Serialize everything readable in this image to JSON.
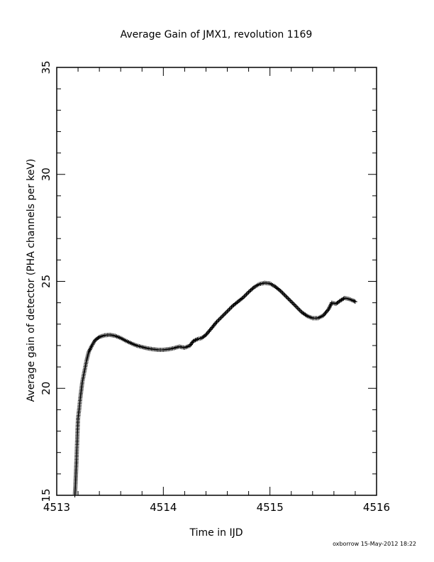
{
  "chart_data": {
    "type": "scatter",
    "title": "Average Gain of JMX1, revolution 1169",
    "xlabel": "Time in IJD",
    "ylabel": "Average gain of detector (PHA channels per keV)",
    "xlim": [
      4513,
      4516
    ],
    "ylim": [
      15,
      35
    ],
    "x_ticks": [
      "4513",
      "4514",
      "4515",
      "4516"
    ],
    "y_ticks": [
      "15",
      "20",
      "25",
      "30",
      "35"
    ],
    "grid": false,
    "marker": "+",
    "series": [
      {
        "points": [
          [
            4513.17,
            15.0
          ],
          [
            4513.175,
            15.4
          ],
          [
            4513.18,
            16.0
          ],
          [
            4513.185,
            16.6
          ],
          [
            4513.19,
            17.3
          ],
          [
            4513.195,
            18.0
          ],
          [
            4513.2,
            18.6
          ],
          [
            4513.21,
            19.0
          ],
          [
            4513.22,
            19.5
          ],
          [
            4513.23,
            19.9
          ],
          [
            4513.24,
            20.3
          ],
          [
            4513.26,
            20.8
          ],
          [
            4513.28,
            21.3
          ],
          [
            4513.3,
            21.7
          ],
          [
            4513.33,
            22.0
          ],
          [
            4513.36,
            22.25
          ],
          [
            4513.4,
            22.4
          ],
          [
            4513.45,
            22.48
          ],
          [
            4513.5,
            22.5
          ],
          [
            4513.55,
            22.45
          ],
          [
            4513.6,
            22.35
          ],
          [
            4513.65,
            22.22
          ],
          [
            4513.7,
            22.1
          ],
          [
            4513.75,
            22.0
          ],
          [
            4513.8,
            21.93
          ],
          [
            4513.85,
            21.87
          ],
          [
            4513.9,
            21.83
          ],
          [
            4513.95,
            21.8
          ],
          [
            4514.0,
            21.8
          ],
          [
            4514.05,
            21.83
          ],
          [
            4514.1,
            21.88
          ],
          [
            4514.15,
            21.95
          ],
          [
            4514.2,
            21.9
          ],
          [
            4514.25,
            22.0
          ],
          [
            4514.28,
            22.2
          ],
          [
            4514.32,
            22.3
          ],
          [
            4514.36,
            22.35
          ],
          [
            4514.4,
            22.5
          ],
          [
            4514.45,
            22.8
          ],
          [
            4514.5,
            23.1
          ],
          [
            4514.55,
            23.35
          ],
          [
            4514.6,
            23.6
          ],
          [
            4514.65,
            23.85
          ],
          [
            4514.7,
            24.05
          ],
          [
            4514.75,
            24.25
          ],
          [
            4514.8,
            24.5
          ],
          [
            4514.85,
            24.72
          ],
          [
            4514.9,
            24.87
          ],
          [
            4514.95,
            24.93
          ],
          [
            4515.0,
            24.9
          ],
          [
            4515.05,
            24.75
          ],
          [
            4515.1,
            24.55
          ],
          [
            4515.15,
            24.3
          ],
          [
            4515.2,
            24.05
          ],
          [
            4515.25,
            23.8
          ],
          [
            4515.3,
            23.55
          ],
          [
            4515.35,
            23.38
          ],
          [
            4515.4,
            23.28
          ],
          [
            4515.45,
            23.28
          ],
          [
            4515.5,
            23.4
          ],
          [
            4515.55,
            23.7
          ],
          [
            4515.58,
            24.0
          ],
          [
            4515.62,
            23.95
          ],
          [
            4515.66,
            24.1
          ],
          [
            4515.7,
            24.22
          ],
          [
            4515.74,
            24.18
          ],
          [
            4515.78,
            24.1
          ],
          [
            4515.8,
            24.05
          ]
        ]
      }
    ]
  },
  "footer": {
    "stamp": "oxborrow 15-May-2012 18:22"
  }
}
